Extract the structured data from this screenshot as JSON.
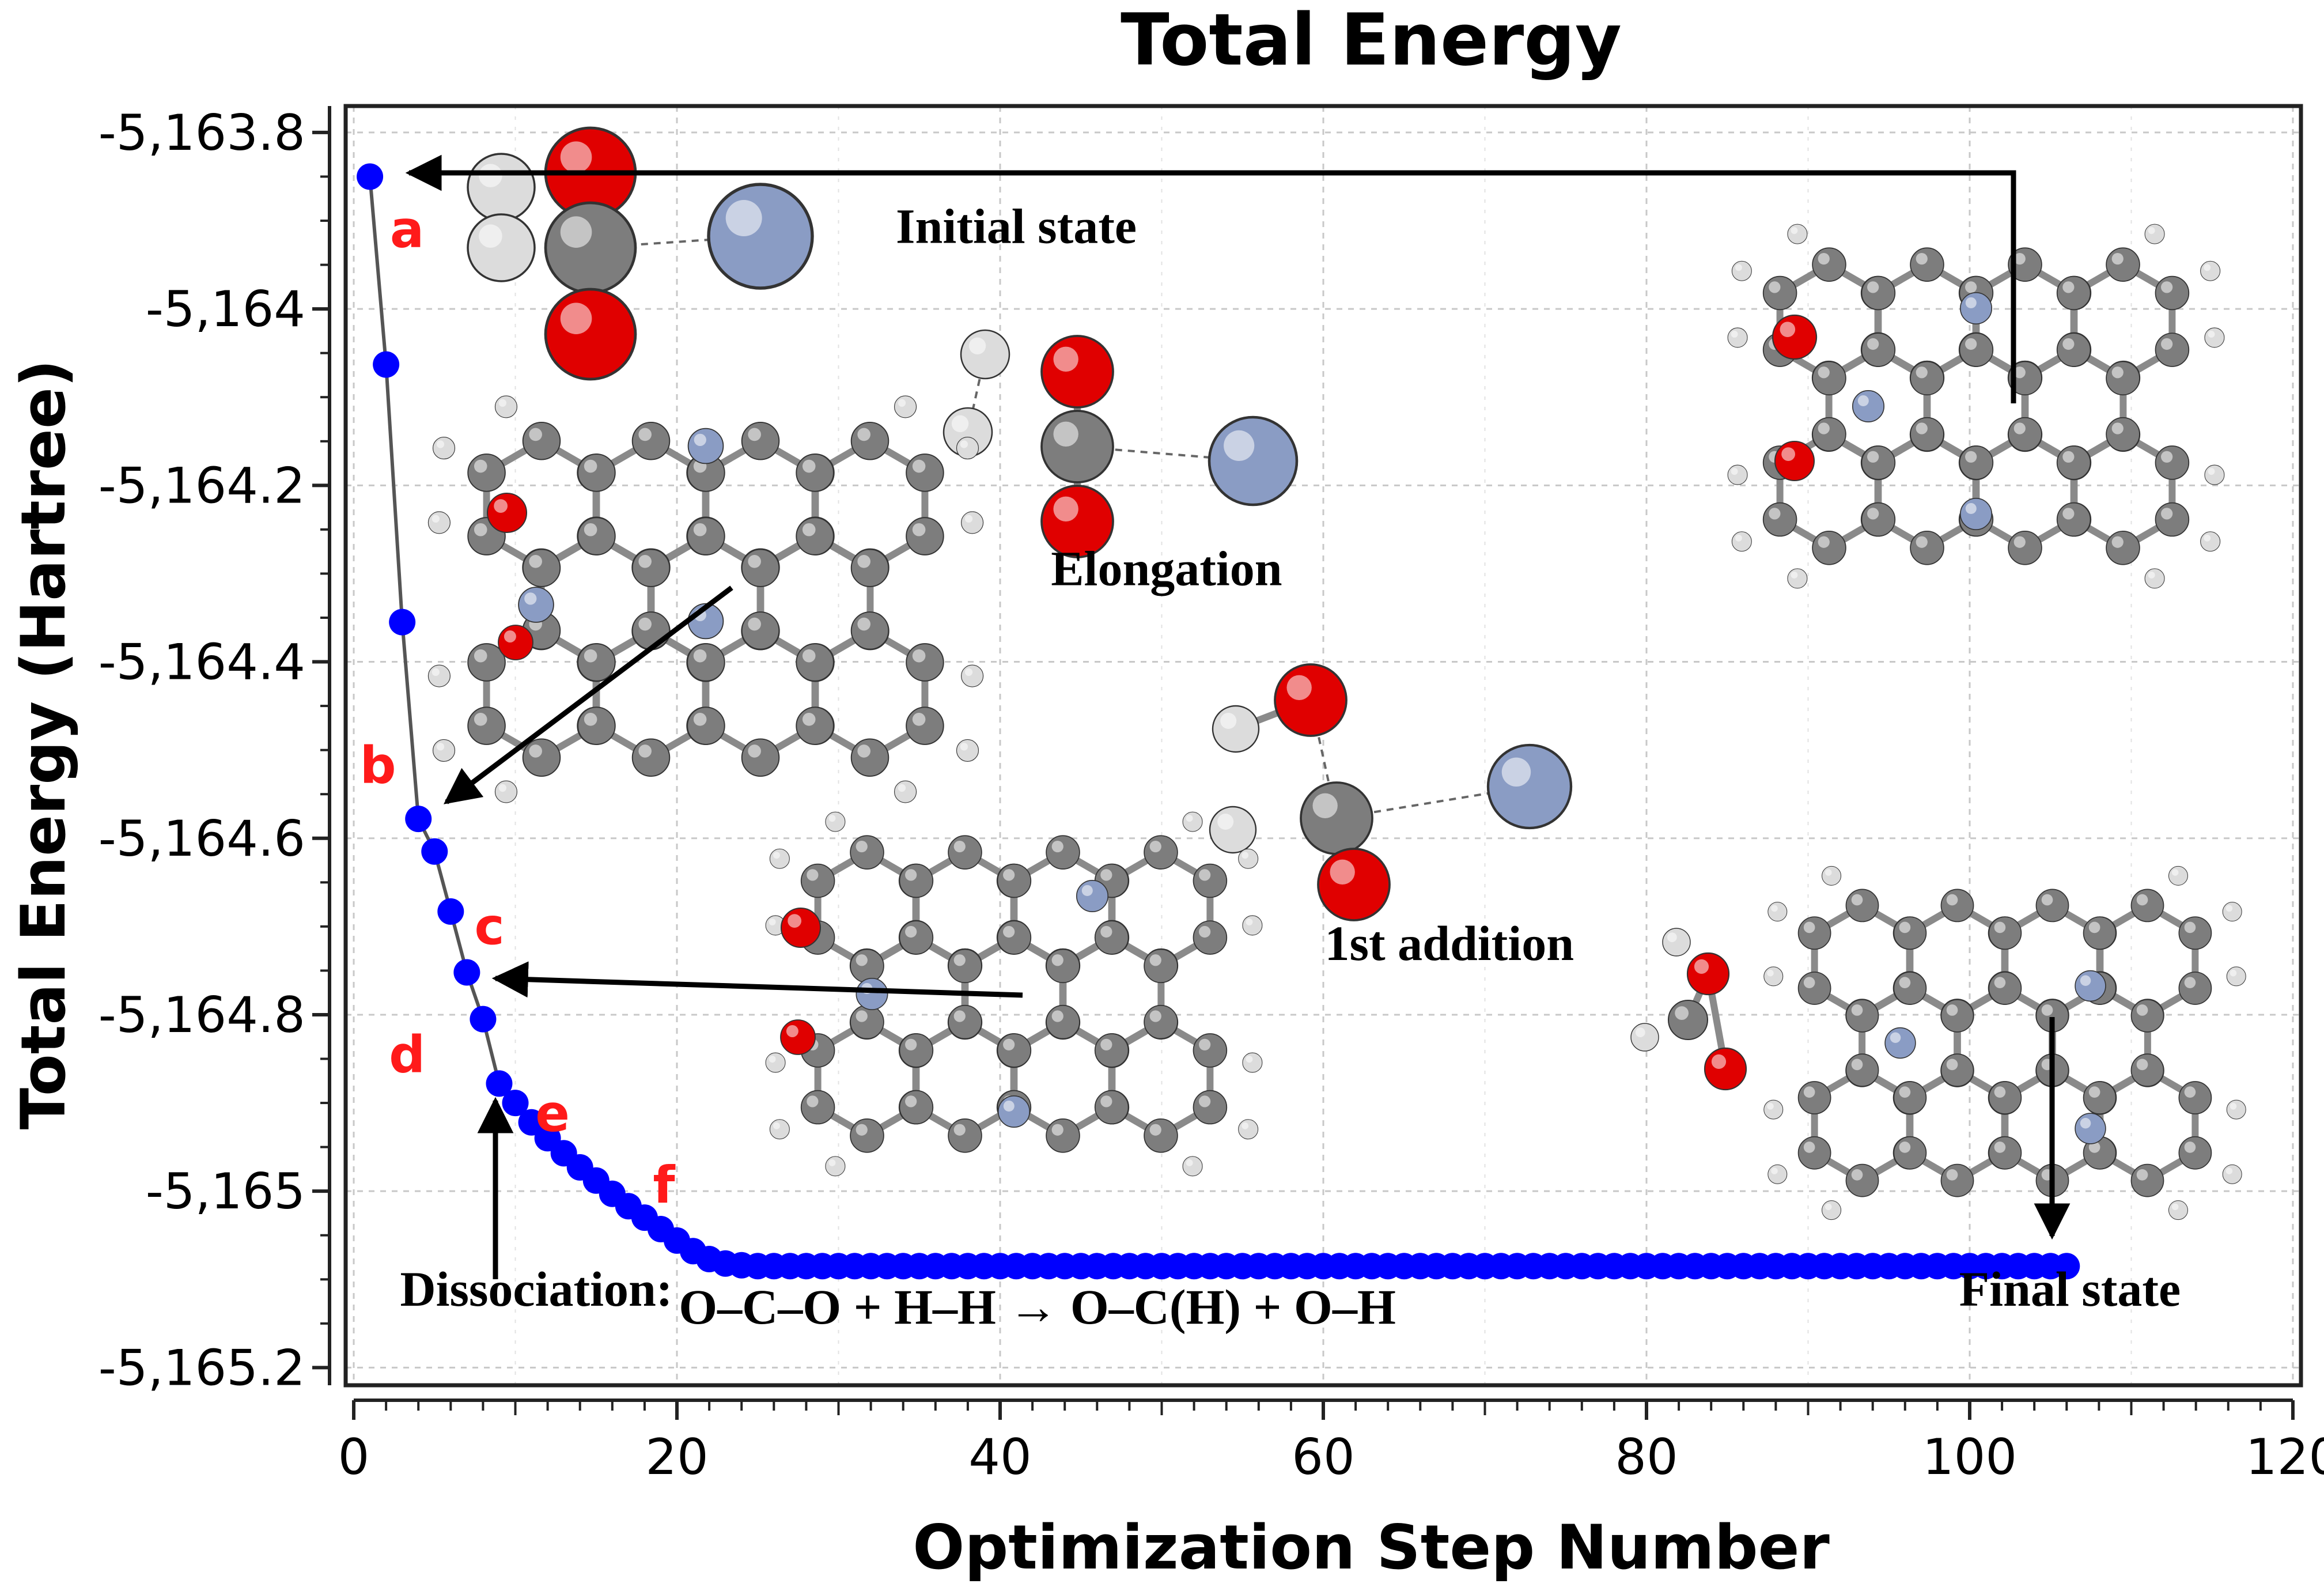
{
  "chart_data": {
    "type": "scatter",
    "title": "Total Energy",
    "xlabel": "Optimization Step Number",
    "ylabel": "Total Energy (Hartree)",
    "xlim": [
      -0.5,
      120.5
    ],
    "ylim": [
      -5165.22,
      -5163.77
    ],
    "x_ticks": [
      0,
      20,
      40,
      60,
      80,
      100,
      120
    ],
    "x_tick_labels": [
      "0",
      "20",
      "40",
      "60",
      "80",
      "100",
      "120"
    ],
    "y_ticks": [
      -5163.8,
      -5164.0,
      -5164.2,
      -5164.4,
      -5164.6,
      -5164.8,
      -5165.0,
      -5165.2
    ],
    "y_tick_labels": [
      "-5,163.8",
      "-5,164",
      "-5,164.2",
      "-5,164.4",
      "-5,164.6",
      "-5,164.8",
      "-5,165",
      "-5,165.2"
    ],
    "grid": true,
    "series": [
      {
        "name": "Total energy",
        "color": "#0000ff",
        "line_color": "#555555",
        "x": [
          1,
          2,
          3,
          4,
          5,
          6,
          7,
          8,
          9,
          10,
          11,
          12,
          13,
          14,
          15,
          16,
          17,
          18,
          19,
          20,
          21,
          22,
          23,
          24,
          25,
          26,
          27,
          28,
          29,
          30,
          31,
          32,
          33,
          34,
          35,
          36,
          37,
          38,
          39,
          40,
          41,
          42,
          43,
          44,
          45,
          46,
          47,
          48,
          49,
          50,
          51,
          52,
          53,
          54,
          55,
          56,
          57,
          58,
          59,
          60,
          61,
          62,
          63,
          64,
          65,
          66,
          67,
          68,
          69,
          70,
          71,
          72,
          73,
          74,
          75,
          76,
          77,
          78,
          79,
          80,
          81,
          82,
          83,
          84,
          85,
          86,
          87,
          88,
          89,
          90,
          91,
          92,
          93,
          94,
          95,
          96,
          97,
          98,
          99,
          100,
          101,
          102,
          103,
          104,
          105,
          106
        ],
        "y": [
          -5163.85,
          -5164.063,
          -5164.355,
          -5164.578,
          -5164.615,
          -5164.683,
          -5164.752,
          -5164.805,
          -5164.878,
          -5164.9,
          -5164.922,
          -5164.94,
          -5164.957,
          -5164.973,
          -5164.988,
          -5165.003,
          -5165.017,
          -5165.03,
          -5165.043,
          -5165.056,
          -5165.068,
          -5165.077,
          -5165.082,
          -5165.084,
          -5165.085,
          -5165.085,
          -5165.085,
          -5165.085,
          -5165.085,
          -5165.085,
          -5165.085,
          -5165.085,
          -5165.085,
          -5165.085,
          -5165.085,
          -5165.085,
          -5165.085,
          -5165.085,
          -5165.085,
          -5165.085,
          -5165.085,
          -5165.085,
          -5165.085,
          -5165.085,
          -5165.085,
          -5165.085,
          -5165.085,
          -5165.085,
          -5165.085,
          -5165.085,
          -5165.085,
          -5165.085,
          -5165.085,
          -5165.085,
          -5165.085,
          -5165.085,
          -5165.085,
          -5165.085,
          -5165.085,
          -5165.085,
          -5165.085,
          -5165.085,
          -5165.085,
          -5165.085,
          -5165.085,
          -5165.085,
          -5165.085,
          -5165.085,
          -5165.085,
          -5165.085,
          -5165.085,
          -5165.085,
          -5165.085,
          -5165.085,
          -5165.085,
          -5165.085,
          -5165.085,
          -5165.085,
          -5165.085,
          -5165.085,
          -5165.085,
          -5165.085,
          -5165.085,
          -5165.085,
          -5165.085,
          -5165.085,
          -5165.085,
          -5165.085,
          -5165.085,
          -5165.085,
          -5165.085,
          -5165.085,
          -5165.085,
          -5165.085,
          -5165.085,
          -5165.085,
          -5165.085,
          -5165.085,
          -5165.085,
          -5165.085,
          -5165.085,
          -5165.085,
          -5165.085,
          -5165.085,
          -5165.085,
          -5165.085
        ]
      }
    ],
    "point_labels": [
      {
        "text": "a",
        "x": 3.3,
        "y": -5163.93
      },
      {
        "text": "b",
        "x": 1.5,
        "y": -5164.537
      },
      {
        "text": "c",
        "x": 8.4,
        "y": -5164.72
      },
      {
        "text": "d",
        "x": 3.3,
        "y": -5164.865
      },
      {
        "text": "e",
        "x": 12.3,
        "y": -5164.932
      },
      {
        "text": "f",
        "x": 19.2,
        "y": -5165.013
      }
    ],
    "annotations": [
      {
        "text": "Initial state",
        "x": 41,
        "y": -5163.925
      },
      {
        "text": "Elongation",
        "x": 50.3,
        "y": -5164.313
      },
      {
        "text": "1st addition",
        "x": 67.8,
        "y": -5164.738
      },
      {
        "text": "Dissociation:",
        "x": 11.3,
        "y": -5165.13
      },
      {
        "text": "O–C–O + H–H  →  O–C(H) + O–H",
        "x": 42.3,
        "y": -5165.15
      },
      {
        "text": "Final state",
        "x": 106.2,
        "y": -5165.13
      }
    ],
    "colors": {
      "points": "#0000ff",
      "labels": "#ff1a1a",
      "carbon": "#7d7d7d",
      "oxygen": "#e00000",
      "hydrogen": "#dcdcdc",
      "dopant": "#8a9cc4"
    }
  }
}
